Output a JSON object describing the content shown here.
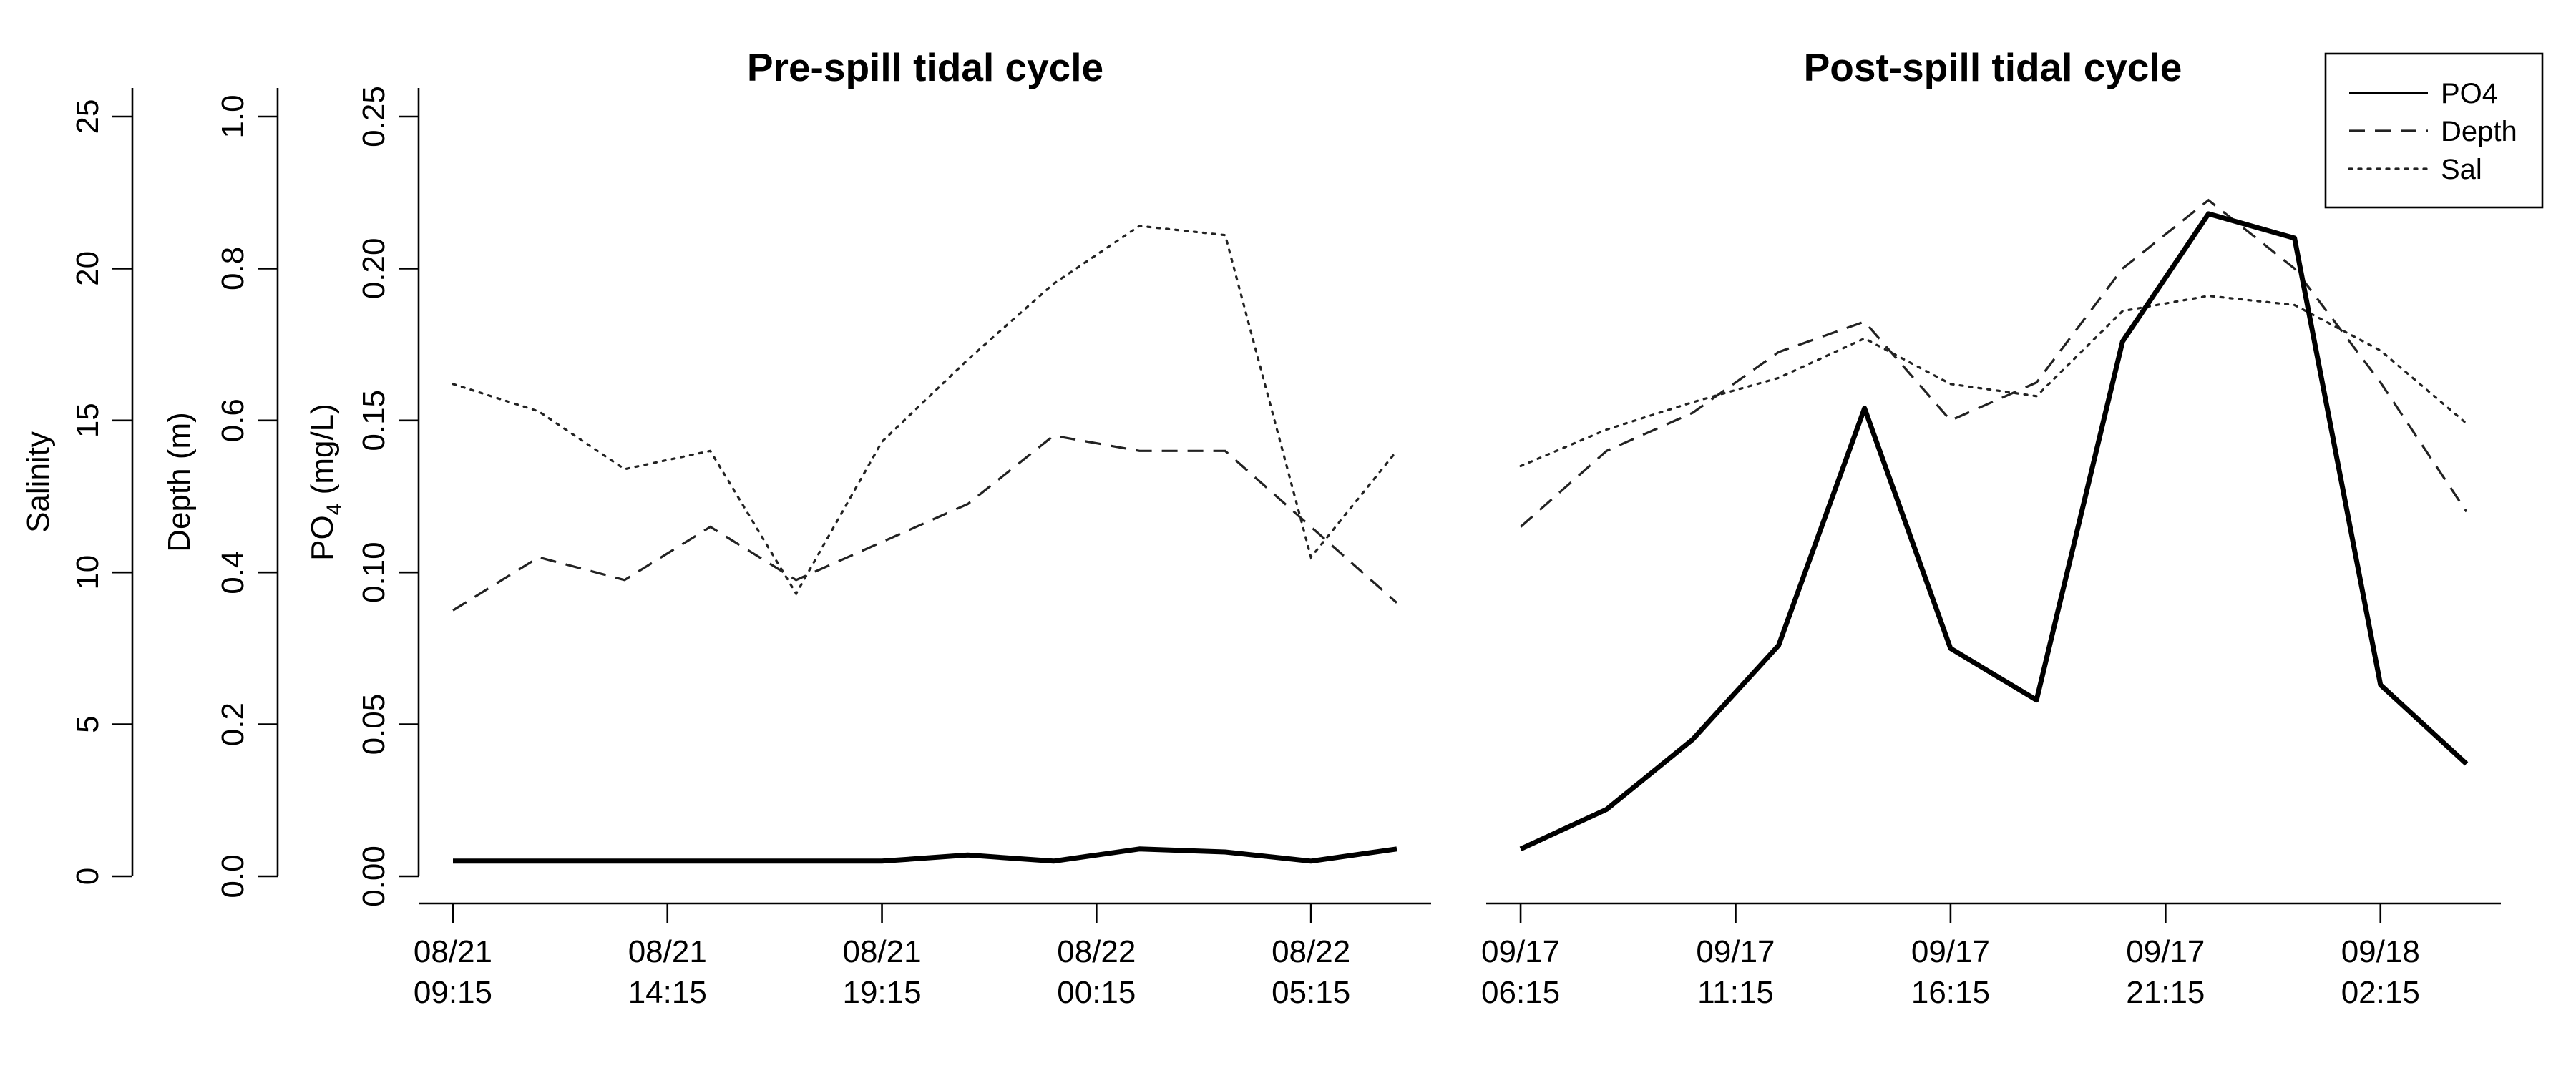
{
  "chart_data": {
    "type": "line",
    "legend": {
      "placement": "top-right",
      "entries": [
        "PO4",
        "Depth",
        "Sal"
      ]
    },
    "axes": {
      "salinity": {
        "label": "Salinity",
        "ylim": [
          0,
          25
        ],
        "ticks": [
          "0",
          "5",
          "10",
          "15",
          "20",
          "25"
        ]
      },
      "depth": {
        "label": "Depth (m)",
        "ylim": [
          0,
          1.0
        ],
        "ticks": [
          "0.0",
          "0.2",
          "0.4",
          "0.6",
          "0.8",
          "1.0"
        ]
      },
      "po4": {
        "label_main": "PO",
        "label_sub": "4",
        "label_rest": " (mg/L)",
        "ylim": [
          0,
          0.25
        ],
        "ticks": [
          "0.00",
          "0.05",
          "0.10",
          "0.15",
          "0.20",
          "0.25"
        ]
      }
    },
    "panels": [
      {
        "title": "Pre-spill tidal cycle",
        "xlim": [
          -0.4,
          11.4
        ],
        "xticks": [
          {
            "at": 0,
            "line1": "08/21",
            "line2": "09:15"
          },
          {
            "at": 2.5,
            "line1": "08/21",
            "line2": "14:15"
          },
          {
            "at": 5,
            "line1": "08/21",
            "line2": "19:15"
          },
          {
            "at": 7.5,
            "line1": "08/22",
            "line2": "00:15"
          },
          {
            "at": 10,
            "line1": "08/22",
            "line2": "05:15"
          }
        ],
        "series": [
          {
            "name": "PO4",
            "x": [
              0,
              1,
              2,
              3,
              4,
              5,
              6,
              7,
              8,
              9,
              10,
              11
            ],
            "y": [
              0.005,
              0.005,
              0.005,
              0.005,
              0.005,
              0.005,
              0.007,
              0.005,
              0.009,
              0.008,
              0.005,
              0.009
            ]
          },
          {
            "name": "Depth",
            "x": [
              0,
              1,
              2,
              3,
              4,
              5,
              6,
              7,
              8,
              9,
              10,
              11
            ],
            "y": [
              0.35,
              0.42,
              0.39,
              0.46,
              0.39,
              0.44,
              0.49,
              0.58,
              0.56,
              0.56,
              0.46,
              0.36
            ]
          },
          {
            "name": "Sal",
            "x": [
              0,
              1,
              2,
              3,
              4,
              5,
              6,
              7,
              8,
              9,
              10,
              11
            ],
            "y": [
              16.2,
              15.3,
              13.4,
              14.0,
              9.3,
              14.3,
              17.0,
              19.5,
              21.4,
              21.1,
              10.5,
              14.0
            ]
          }
        ]
      },
      {
        "title": "Post-spill tidal cycle",
        "xlim": [
          -0.4,
          11.4
        ],
        "xticks": [
          {
            "at": 0,
            "line1": "09/17",
            "line2": "06:15"
          },
          {
            "at": 2.5,
            "line1": "09/17",
            "line2": "11:15"
          },
          {
            "at": 5,
            "line1": "09/17",
            "line2": "16:15"
          },
          {
            "at": 7.5,
            "line1": "09/17",
            "line2": "21:15"
          },
          {
            "at": 10,
            "line1": "09/18",
            "line2": "02:15"
          }
        ],
        "series": [
          {
            "name": "PO4",
            "x": [
              0,
              1,
              2,
              3,
              4,
              5,
              6,
              7,
              8,
              9,
              10,
              11
            ],
            "y": [
              0.009,
              0.022,
              0.045,
              0.076,
              0.154,
              0.075,
              0.058,
              0.176,
              0.218,
              0.21,
              0.063,
              0.037
            ]
          },
          {
            "name": "Depth",
            "x": [
              0,
              1,
              2,
              3,
              4,
              5,
              6,
              7,
              8,
              9,
              10,
              11
            ],
            "y": [
              0.46,
              0.56,
              0.61,
              0.69,
              0.73,
              0.6,
              0.65,
              0.8,
              0.89,
              0.8,
              0.65,
              0.48
            ]
          },
          {
            "name": "Sal",
            "x": [
              0,
              1,
              2,
              3,
              4,
              5,
              6,
              7,
              8,
              9,
              10,
              11
            ],
            "y": [
              13.5,
              14.7,
              15.6,
              16.4,
              17.7,
              16.2,
              15.8,
              18.6,
              19.1,
              18.8,
              17.3,
              14.9
            ]
          }
        ]
      }
    ]
  }
}
